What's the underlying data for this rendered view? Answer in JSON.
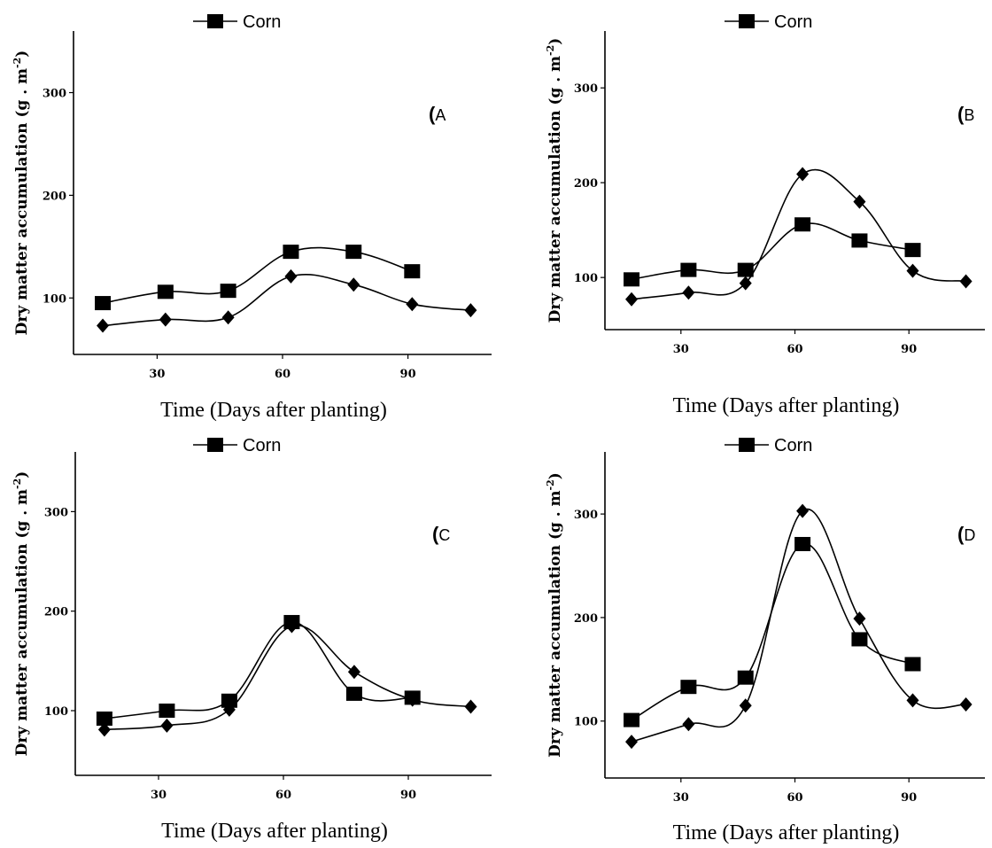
{
  "chart_data": [
    {
      "type": "line",
      "panel_label": "A",
      "xlabel": "Time (Days after planting)",
      "ylabel": "Dry matter accumulation (g . m-2)",
      "ylabel_main": "Dry matter accumulation (g . m",
      "ylabel_sup": "-2",
      "ylabel_close": ")",
      "xlim": [
        10,
        110
      ],
      "ylim": [
        45,
        360
      ],
      "x_ticks": [
        30,
        60,
        90
      ],
      "y_ticks": [
        100,
        200,
        300
      ],
      "legend": {
        "entries": [
          "Corn"
        ],
        "placement": "top-left"
      },
      "series": [
        {
          "name": "Corn",
          "marker": "square",
          "x": [
            17,
            32,
            47,
            62,
            77,
            91
          ],
          "y": [
            95,
            106,
            107,
            145,
            145,
            126
          ]
        },
        {
          "marker": "diamond",
          "x": [
            17,
            32,
            47,
            62,
            77,
            91,
            105
          ],
          "y": [
            73,
            79,
            81,
            121,
            113,
            94,
            88
          ]
        }
      ]
    },
    {
      "type": "line",
      "panel_label": "B",
      "xlabel": "Time (Days after planting)",
      "ylabel": "Dry matter accumulation (g . m-2)",
      "ylabel_main": "Dry matter accumulation (g . m",
      "ylabel_sup": "-2",
      "ylabel_close": ")",
      "xlim": [
        10,
        110
      ],
      "ylim": [
        45,
        360
      ],
      "x_ticks": [
        30,
        60,
        90
      ],
      "y_ticks": [
        100,
        200,
        300
      ],
      "legend": {
        "entries": [
          "Corn"
        ],
        "placement": "top-left"
      },
      "series": [
        {
          "name": "Corn",
          "marker": "square",
          "x": [
            17,
            32,
            47,
            62,
            77,
            91
          ],
          "y": [
            98,
            108,
            108,
            156,
            139,
            129
          ]
        },
        {
          "marker": "diamond",
          "x": [
            17,
            32,
            47,
            62,
            77,
            91,
            105
          ],
          "y": [
            77,
            84,
            94,
            209,
            180,
            107,
            96
          ]
        }
      ]
    },
    {
      "type": "line",
      "panel_label": "C",
      "xlabel": "Time (Days after planting)",
      "ylabel": "Dry matter accumulation (g . m-2)",
      "ylabel_main": "Dry matter accumulation (g . m",
      "ylabel_sup": "-2",
      "ylabel_close": ")",
      "xlim": [
        10,
        110
      ],
      "ylim": [
        35,
        360
      ],
      "x_ticks": [
        30,
        60,
        90
      ],
      "y_ticks": [
        100,
        200,
        300
      ],
      "legend": {
        "entries": [
          "Corn"
        ],
        "placement": "top-left"
      },
      "series": [
        {
          "name": "Corn",
          "marker": "square",
          "x": [
            17,
            32,
            47,
            62,
            77,
            91
          ],
          "y": [
            92,
            100,
            110,
            189,
            117,
            113
          ]
        },
        {
          "marker": "diamond",
          "x": [
            17,
            32,
            47,
            62,
            77,
            91,
            105
          ],
          "y": [
            81,
            85,
            101,
            185,
            139,
            111,
            104
          ]
        }
      ]
    },
    {
      "type": "line",
      "panel_label": "D",
      "xlabel": "Time (Days after planting)",
      "ylabel": "Dry matter accumulation (g . m-2)",
      "ylabel_main": "Dry matter accumulation (g . m",
      "ylabel_sup": "-2",
      "ylabel_close": ")",
      "xlim": [
        10,
        110
      ],
      "ylim": [
        45,
        360
      ],
      "x_ticks": [
        30,
        60,
        90
      ],
      "y_ticks": [
        100,
        200,
        300
      ],
      "legend": {
        "entries": [
          "Corn"
        ],
        "placement": "top-left"
      },
      "series": [
        {
          "name": "Corn",
          "marker": "square",
          "x": [
            17,
            32,
            47,
            62,
            77,
            91
          ],
          "y": [
            101,
            133,
            142,
            271,
            179,
            155
          ]
        },
        {
          "marker": "diamond",
          "x": [
            17,
            32,
            47,
            62,
            77,
            91,
            105
          ],
          "y": [
            80,
            97,
            115,
            303,
            199,
            120,
            116
          ]
        }
      ]
    }
  ]
}
